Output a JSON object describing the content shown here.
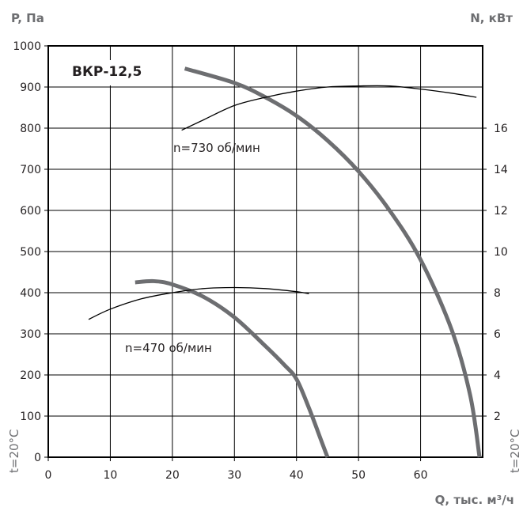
{
  "chart_data": {
    "type": "line",
    "title": "ВКР-12,5",
    "xlabel": "Q, тыс. м³/ч",
    "ylabel_left": "P, Па",
    "ylabel_right": "N, кВт",
    "side_label": "t=20°C",
    "xlim": [
      0,
      70
    ],
    "ylim_left": [
      0,
      1000
    ],
    "ylim_right": [
      0,
      20
    ],
    "x_ticks": [
      0,
      10,
      20,
      30,
      40,
      50,
      60
    ],
    "y_ticks_left": [
      0,
      100,
      200,
      300,
      400,
      500,
      600,
      700,
      800,
      900,
      1000
    ],
    "y_ticks_right": [
      2,
      4,
      6,
      8,
      10,
      12,
      14,
      16
    ],
    "grid": true,
    "series": [
      {
        "name": "n=730 об/мин",
        "axis": "left",
        "style": "thick",
        "x": [
          22,
          30,
          35,
          40,
          45,
          50,
          55,
          60,
          65,
          68,
          69.5
        ],
        "y": [
          945,
          910,
          875,
          830,
          770,
          695,
          600,
          480,
          310,
          150,
          0
        ]
      },
      {
        "name": "",
        "axis": "right",
        "style": "thin",
        "x": [
          21.5,
          25,
          30,
          35,
          40,
          45,
          50,
          55,
          60,
          65,
          69
        ],
        "y": [
          15.9,
          16.4,
          17.1,
          17.5,
          17.8,
          18.0,
          18.05,
          18.05,
          17.9,
          17.7,
          17.5
        ]
      },
      {
        "name": "n=470 об/мин",
        "axis": "left",
        "style": "thick",
        "x": [
          14,
          17,
          20,
          25,
          30,
          35,
          38,
          40,
          42,
          44,
          45
        ],
        "y": [
          425,
          428,
          420,
          390,
          340,
          270,
          225,
          190,
          120,
          40,
          0
        ]
      },
      {
        "name": "",
        "axis": "right",
        "style": "thin",
        "x": [
          6.5,
          10,
          15,
          20,
          25,
          30,
          35,
          40,
          42
        ],
        "y": [
          6.7,
          7.2,
          7.7,
          8.0,
          8.2,
          8.25,
          8.2,
          8.05,
          7.95
        ]
      }
    ],
    "annotations": [
      "n=730 об/мин",
      "n=470 об/мин"
    ]
  },
  "style": {
    "thick_color": "#6d6e71",
    "thin_color": "#000000",
    "grid_color": "#000000",
    "axis_title_color": "#6d6e71"
  }
}
